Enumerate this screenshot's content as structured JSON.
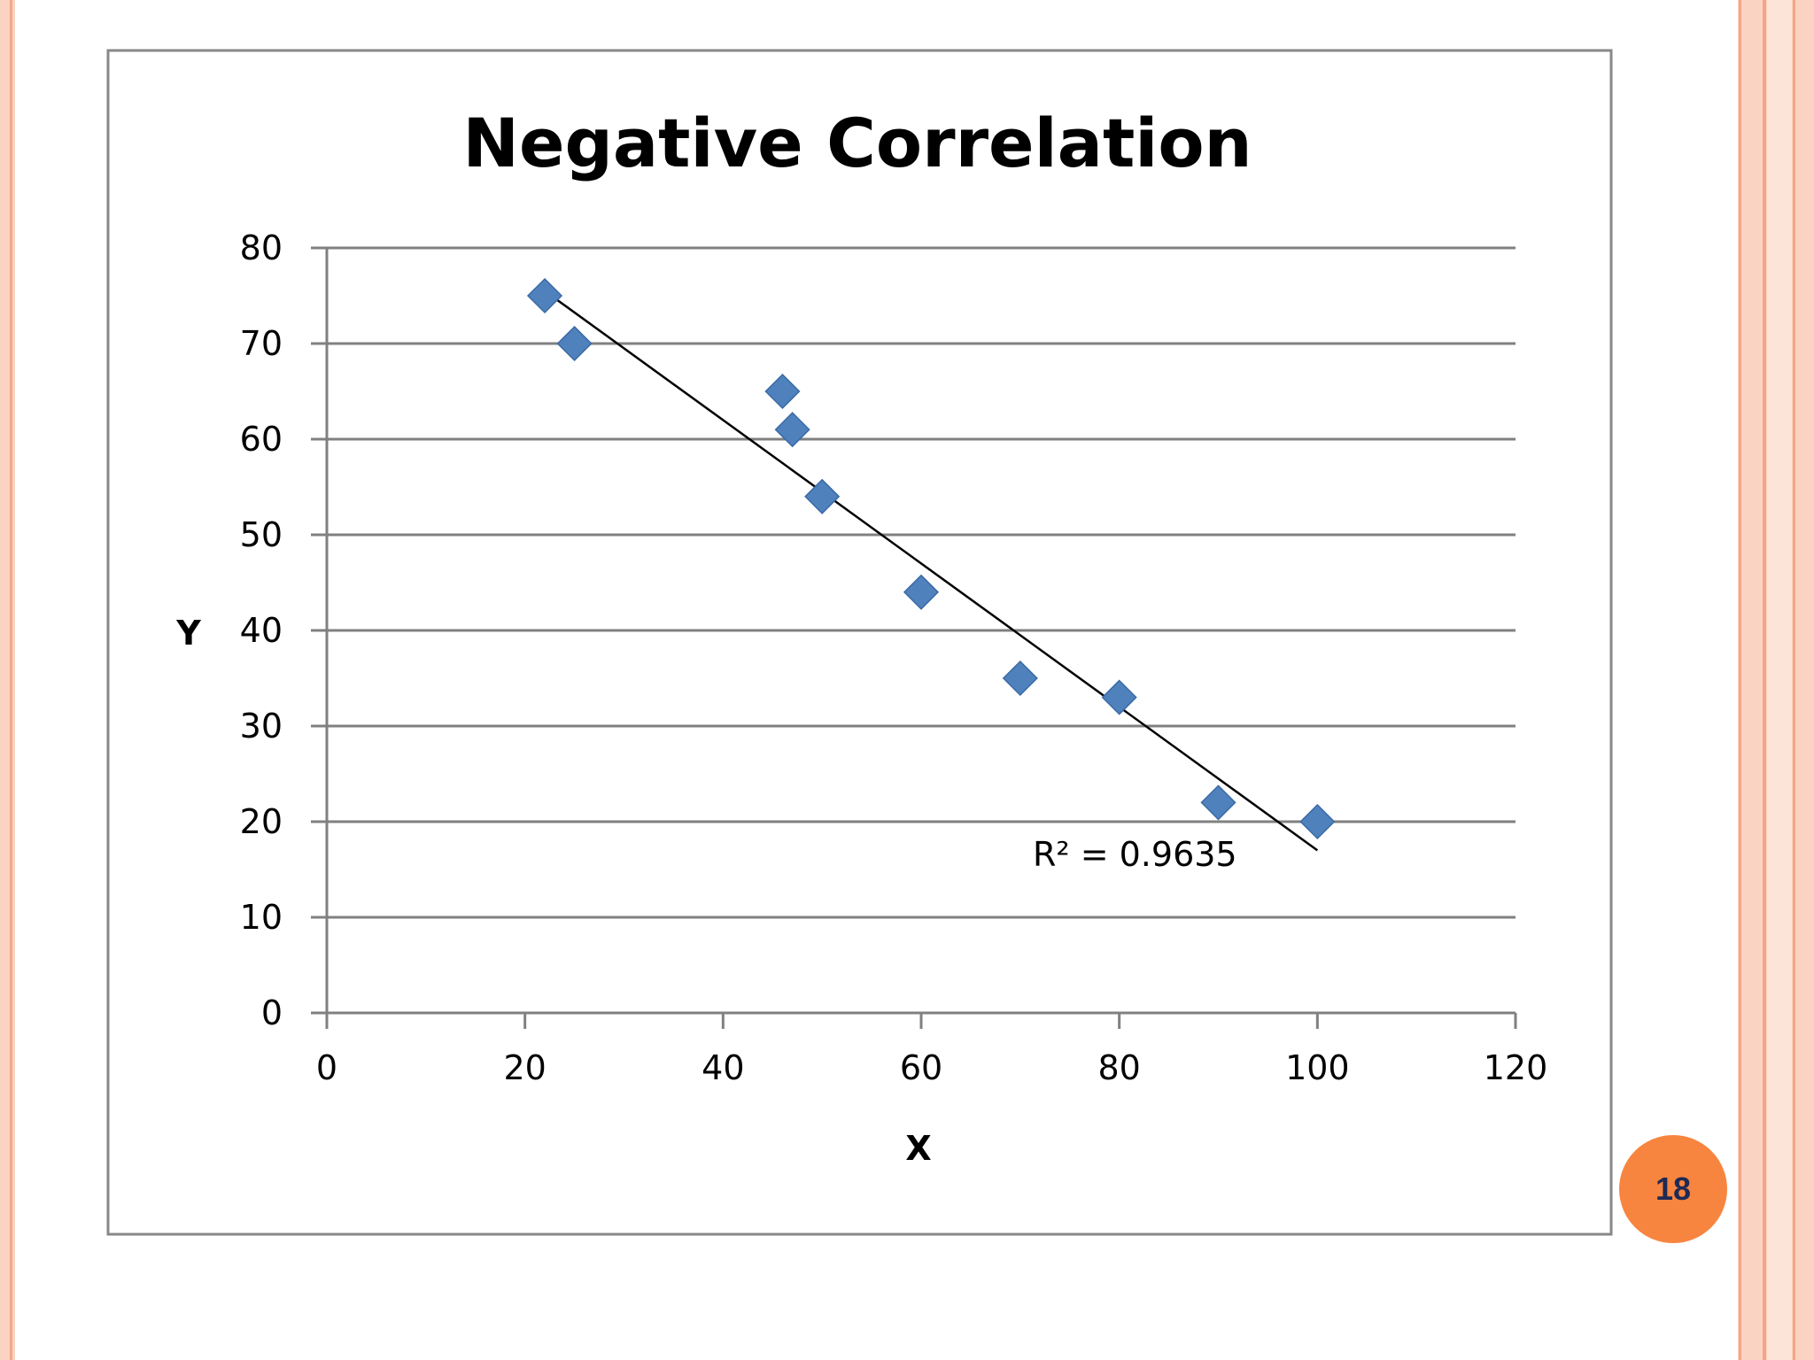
{
  "slide": {
    "page_number": "18",
    "colors": {
      "accent_stripe": "#fbd3c3",
      "accent_line": "#f4a585",
      "badge": "#f7853f",
      "badge_text": "#1e2a55"
    }
  },
  "chart_data": {
    "type": "scatter",
    "title": "Negative Correlation",
    "xlabel": "X",
    "ylabel": "Y",
    "xlim": [
      0,
      120
    ],
    "ylim": [
      0,
      80
    ],
    "xticks": [
      0,
      20,
      40,
      60,
      80,
      100,
      120
    ],
    "yticks": [
      0,
      10,
      20,
      30,
      40,
      50,
      60,
      70,
      80
    ],
    "grid": "horizontal",
    "legend": "none",
    "series": [
      {
        "name": "Y",
        "color": "#4f81bd",
        "marker": "diamond",
        "x": [
          22,
          25,
          46,
          47,
          50,
          60,
          70,
          80,
          90,
          100
        ],
        "y": [
          75,
          70,
          65,
          61,
          54,
          44,
          35,
          33,
          22,
          20
        ]
      }
    ],
    "trendline": {
      "type": "linear",
      "x_start": 22,
      "y_start": 75.5,
      "x_end": 100,
      "y_end": 17,
      "color": "#000000",
      "label": "R² = 0.9635"
    }
  }
}
